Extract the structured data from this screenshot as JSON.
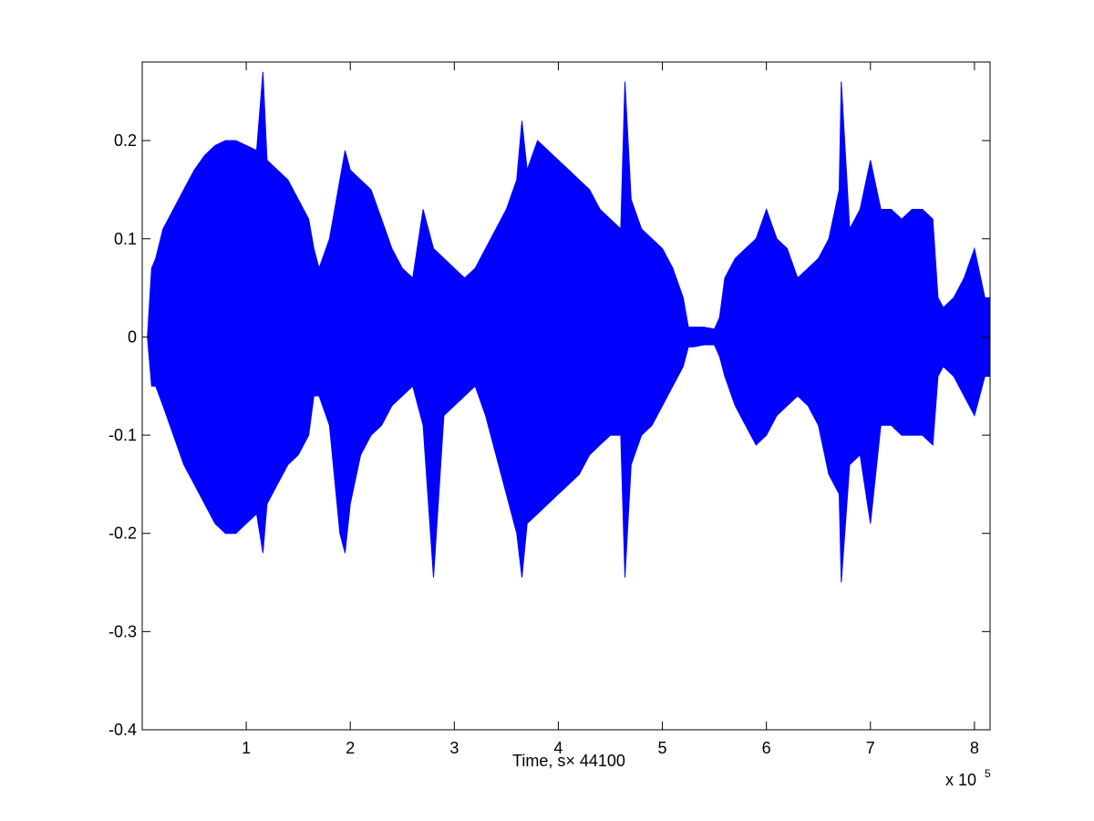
{
  "chart_data": {
    "type": "line",
    "title": "",
    "xlabel": "Time, s× 44100",
    "ylabel": "",
    "x_exponent_label": "x 10",
    "x_exponent_power": "5",
    "xlim": [
      0,
      8.15
    ],
    "ylim": [
      -0.4,
      0.28
    ],
    "x_ticks": [
      1,
      2,
      3,
      4,
      5,
      6,
      7,
      8
    ],
    "x_tick_labels": [
      "1",
      "2",
      "3",
      "4",
      "5",
      "6",
      "7",
      "8"
    ],
    "y_ticks": [
      -0.4,
      -0.3,
      -0.2,
      -0.1,
      0,
      0.1,
      0.2
    ],
    "y_tick_labels": [
      "-0.4",
      "-0.3",
      "-0.2",
      "-0.1",
      "0",
      "0.1",
      "0.2"
    ],
    "grid": false,
    "legend": "none",
    "series": [
      {
        "color": "#0000ff",
        "envelope": {
          "x": [
            0.05,
            0.09,
            0.13,
            0.2,
            0.3,
            0.4,
            0.5,
            0.6,
            0.7,
            0.8,
            0.9,
            1.0,
            1.1,
            1.16,
            1.2,
            1.3,
            1.4,
            1.5,
            1.6,
            1.65,
            1.7,
            1.8,
            1.9,
            1.95,
            2.0,
            2.1,
            2.2,
            2.3,
            2.4,
            2.5,
            2.6,
            2.7,
            2.8,
            2.9,
            3.0,
            3.1,
            3.2,
            3.3,
            3.4,
            3.5,
            3.6,
            3.65,
            3.7,
            3.8,
            3.9,
            4.0,
            4.1,
            4.2,
            4.3,
            4.4,
            4.5,
            4.6,
            4.64,
            4.7,
            4.8,
            4.9,
            5.0,
            5.1,
            5.2,
            5.25,
            5.3,
            5.4,
            5.5,
            5.55,
            5.6,
            5.7,
            5.8,
            5.9,
            6.0,
            6.1,
            6.2,
            6.3,
            6.4,
            6.5,
            6.6,
            6.7,
            6.72,
            6.8,
            6.9,
            7.0,
            7.1,
            7.2,
            7.3,
            7.4,
            7.5,
            7.6,
            7.65,
            7.7,
            7.8,
            7.9,
            8.0,
            8.1,
            8.15
          ],
          "upper": [
            0.0,
            0.07,
            0.08,
            0.11,
            0.13,
            0.15,
            0.17,
            0.185,
            0.195,
            0.2,
            0.2,
            0.195,
            0.19,
            0.27,
            0.18,
            0.17,
            0.16,
            0.14,
            0.12,
            0.09,
            0.07,
            0.1,
            0.16,
            0.19,
            0.17,
            0.16,
            0.15,
            0.12,
            0.09,
            0.07,
            0.06,
            0.13,
            0.09,
            0.08,
            0.07,
            0.06,
            0.07,
            0.09,
            0.11,
            0.13,
            0.16,
            0.22,
            0.17,
            0.2,
            0.19,
            0.18,
            0.17,
            0.16,
            0.15,
            0.13,
            0.12,
            0.11,
            0.26,
            0.14,
            0.11,
            0.1,
            0.09,
            0.07,
            0.04,
            0.01,
            0.01,
            0.01,
            0.008,
            0.02,
            0.06,
            0.08,
            0.09,
            0.1,
            0.13,
            0.1,
            0.09,
            0.06,
            0.07,
            0.08,
            0.1,
            0.15,
            0.26,
            0.11,
            0.13,
            0.18,
            0.13,
            0.13,
            0.12,
            0.13,
            0.13,
            0.12,
            0.04,
            0.03,
            0.04,
            0.06,
            0.09,
            0.04,
            0.04
          ],
          "lower": [
            0.0,
            -0.05,
            -0.05,
            -0.07,
            -0.1,
            -0.13,
            -0.15,
            -0.17,
            -0.19,
            -0.2,
            -0.2,
            -0.19,
            -0.18,
            -0.22,
            -0.17,
            -0.15,
            -0.13,
            -0.12,
            -0.1,
            -0.06,
            -0.06,
            -0.09,
            -0.2,
            -0.22,
            -0.17,
            -0.12,
            -0.1,
            -0.09,
            -0.07,
            -0.06,
            -0.05,
            -0.09,
            -0.245,
            -0.08,
            -0.07,
            -0.06,
            -0.05,
            -0.08,
            -0.12,
            -0.16,
            -0.2,
            -0.245,
            -0.19,
            -0.18,
            -0.17,
            -0.16,
            -0.15,
            -0.14,
            -0.12,
            -0.11,
            -0.1,
            -0.1,
            -0.245,
            -0.13,
            -0.1,
            -0.09,
            -0.07,
            -0.05,
            -0.03,
            -0.01,
            -0.01,
            -0.008,
            -0.008,
            -0.02,
            -0.04,
            -0.07,
            -0.09,
            -0.11,
            -0.1,
            -0.08,
            -0.07,
            -0.06,
            -0.07,
            -0.09,
            -0.14,
            -0.16,
            -0.25,
            -0.13,
            -0.12,
            -0.19,
            -0.09,
            -0.09,
            -0.1,
            -0.1,
            -0.1,
            -0.11,
            -0.04,
            -0.03,
            -0.04,
            -0.06,
            -0.08,
            -0.04,
            -0.04
          ]
        }
      }
    ]
  }
}
